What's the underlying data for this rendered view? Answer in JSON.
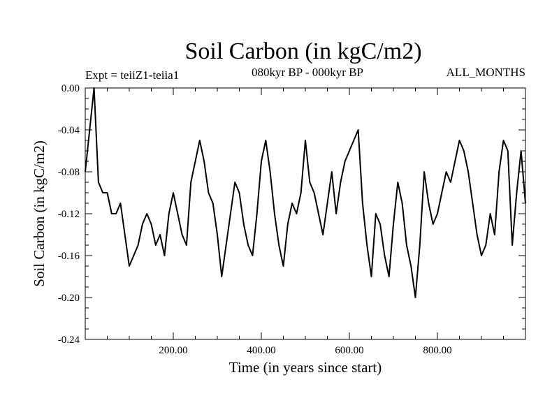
{
  "chart_data": {
    "type": "line",
    "title": "Soil Carbon (in kgC/m2)",
    "subtitle_left": "Expt = teiiZ1-teiia1",
    "subtitle_center": "080kyr BP - 000kyr BP",
    "subtitle_right": "ALL_MONTHS",
    "xlabel": "Time (in years since start)",
    "ylabel": "Soil Carbon (in kgC/m2)",
    "xlim": [
      0,
      1000
    ],
    "ylim": [
      -0.24,
      0.0
    ],
    "x_ticks_major": [
      200,
      400,
      600,
      800
    ],
    "x_tick_labels": [
      "200.00",
      "400.00",
      "600.00",
      "800.00"
    ],
    "y_ticks_major": [
      0.0,
      -0.04,
      -0.08,
      -0.12,
      -0.16,
      -0.2,
      -0.24
    ],
    "y_tick_labels": [
      "0.00",
      "-0.04",
      "-0.08",
      "-0.12",
      "-0.16",
      "-0.20",
      "-0.24"
    ],
    "grid": false,
    "series": [
      {
        "color": "#000000",
        "x": [
          0,
          10,
          20,
          30,
          40,
          50,
          60,
          70,
          80,
          90,
          100,
          110,
          120,
          130,
          140,
          150,
          160,
          170,
          180,
          190,
          200,
          210,
          220,
          230,
          240,
          250,
          260,
          270,
          280,
          290,
          300,
          310,
          320,
          330,
          340,
          350,
          360,
          370,
          380,
          390,
          400,
          410,
          420,
          430,
          440,
          450,
          460,
          470,
          480,
          490,
          500,
          510,
          520,
          530,
          540,
          550,
          560,
          570,
          580,
          590,
          600,
          610,
          620,
          630,
          640,
          650,
          660,
          670,
          680,
          690,
          700,
          710,
          720,
          730,
          740,
          750,
          760,
          770,
          780,
          790,
          800,
          810,
          820,
          830,
          840,
          850,
          860,
          870,
          880,
          890,
          900,
          910,
          920,
          930,
          940,
          950,
          960,
          970,
          980,
          990,
          1000
        ],
        "y": [
          -0.08,
          -0.04,
          0.0,
          -0.09,
          -0.1,
          -0.1,
          -0.12,
          -0.12,
          -0.11,
          -0.14,
          -0.17,
          -0.16,
          -0.15,
          -0.13,
          -0.12,
          -0.13,
          -0.15,
          -0.14,
          -0.16,
          -0.12,
          -0.1,
          -0.12,
          -0.14,
          -0.15,
          -0.09,
          -0.07,
          -0.05,
          -0.07,
          -0.1,
          -0.11,
          -0.14,
          -0.18,
          -0.15,
          -0.12,
          -0.09,
          -0.1,
          -0.13,
          -0.15,
          -0.16,
          -0.12,
          -0.07,
          -0.05,
          -0.08,
          -0.12,
          -0.15,
          -0.17,
          -0.13,
          -0.11,
          -0.12,
          -0.1,
          -0.05,
          -0.09,
          -0.1,
          -0.12,
          -0.14,
          -0.11,
          -0.08,
          -0.12,
          -0.09,
          -0.07,
          -0.06,
          -0.05,
          -0.04,
          -0.11,
          -0.15,
          -0.18,
          -0.12,
          -0.13,
          -0.16,
          -0.18,
          -0.13,
          -0.09,
          -0.11,
          -0.15,
          -0.17,
          -0.2,
          -0.15,
          -0.08,
          -0.11,
          -0.13,
          -0.12,
          -0.1,
          -0.08,
          -0.09,
          -0.07,
          -0.05,
          -0.06,
          -0.08,
          -0.11,
          -0.14,
          -0.16,
          -0.15,
          -0.12,
          -0.14,
          -0.08,
          -0.05,
          -0.06,
          -0.15,
          -0.1,
          -0.06,
          -0.11
        ]
      }
    ]
  }
}
